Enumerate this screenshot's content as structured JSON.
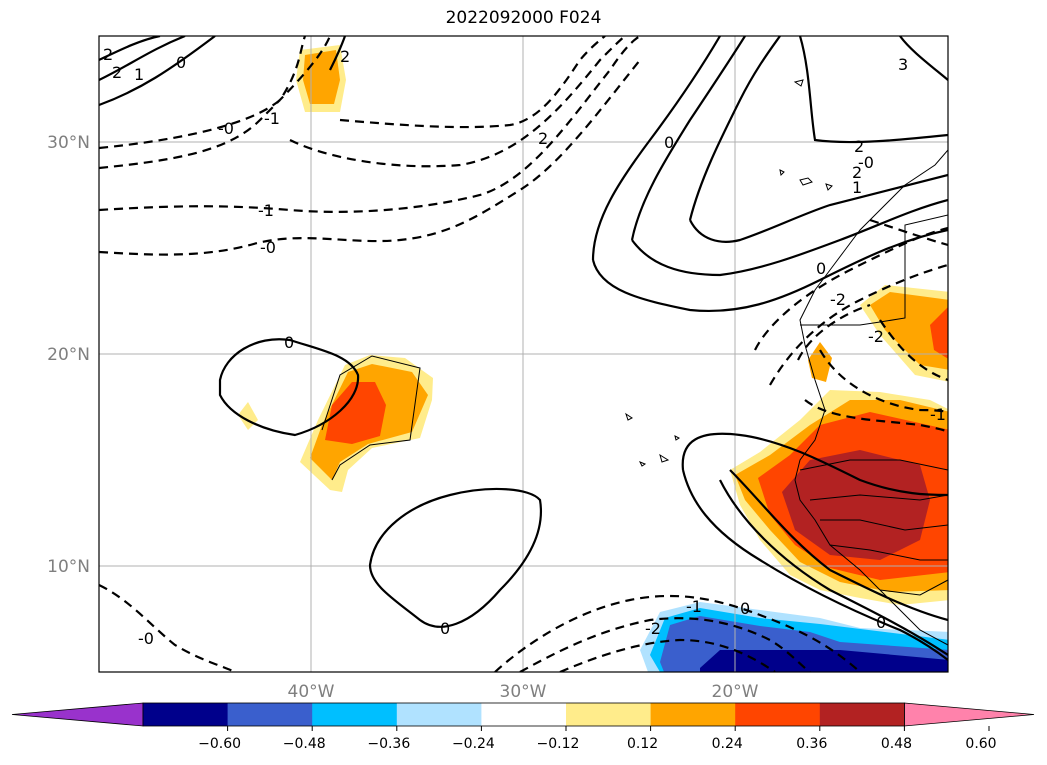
{
  "title": "2022092000 F024",
  "lat_labels": [
    "30°N",
    "20°N",
    "10°N"
  ],
  "lon_labels": [
    "40°W",
    "30°W",
    "20°W"
  ],
  "contour_labels": [
    "2",
    "2",
    "1",
    "0",
    "-0",
    "-1",
    "2",
    "-1",
    "-0",
    "0",
    "0",
    "0",
    "0",
    "-0",
    "-2",
    "-1",
    "0",
    "2",
    "2",
    "1",
    "0",
    "-2",
    "2",
    "-2",
    "-1",
    "3",
    "-0"
  ],
  "colorbar": {
    "ticks": [
      "−0.60",
      "−0.48",
      "−0.36",
      "−0.24",
      "−0.12",
      "0.12",
      "0.24",
      "0.36",
      "0.48",
      "0.60"
    ],
    "colors": [
      "#9932cc",
      "#00008b",
      "#3a5fcd",
      "#00bfff",
      "#b0e2ff",
      "#ffffff",
      "#ffec8b",
      "#ffa500",
      "#ff4500",
      "#b22222",
      "#ff82ab"
    ]
  }
}
